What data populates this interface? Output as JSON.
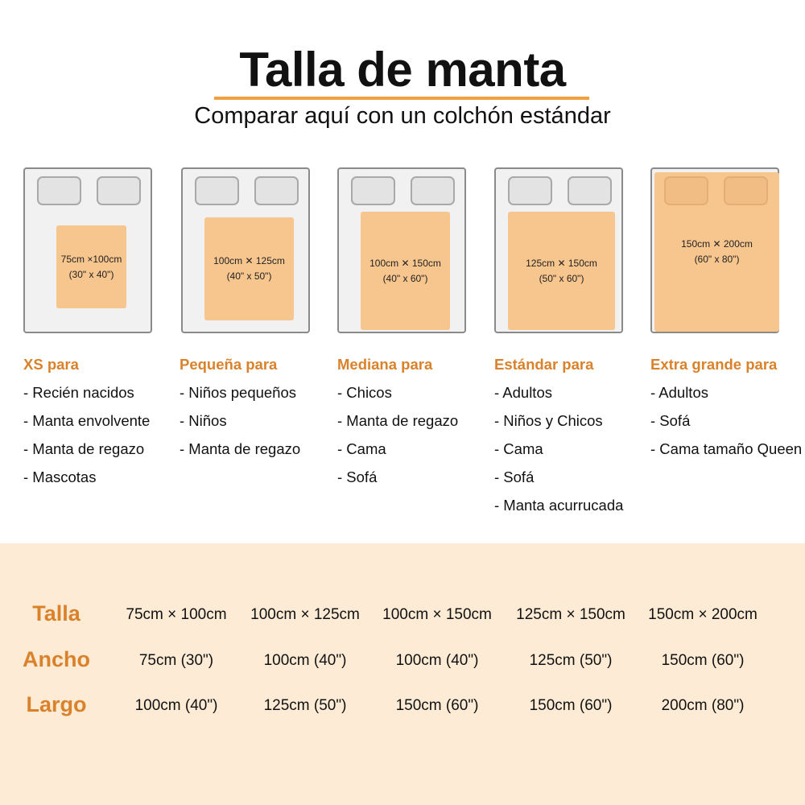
{
  "header": {
    "title": "Talla de manta",
    "subtitle": "Comparar aquí con un colchón estándar"
  },
  "colors": {
    "accent": "#d9822b",
    "blanket": "#f7c68e",
    "bottom_bg": "#fdebd5"
  },
  "sizes": [
    {
      "cm": "75cm ×100cm",
      "in": "(30\" x 40\")",
      "heading": "XS para",
      "uses": [
        "- Recién nacidos",
        "- Manta envolvente",
        "- Manta de regazo",
        "- Mascotas"
      ]
    },
    {
      "cm": "100cm ✕ 125cm",
      "in": "(40\" x 50\")",
      "heading": "Pequeña para",
      "uses": [
        "- Niños pequeños",
        "- Niños",
        "- Manta de regazo"
      ]
    },
    {
      "cm": "100cm ✕ 150cm",
      "in": "(40\" x 60\")",
      "heading": "Mediana para",
      "uses": [
        "- Chicos",
        "- Manta de regazo",
        "- Cama",
        "- Sofá"
      ]
    },
    {
      "cm": "125cm ✕ 150cm",
      "in": "(50\" x 60\")",
      "heading": "Estándar para",
      "uses": [
        "- Adultos",
        "- Niños y Chicos",
        "- Cama",
        "- Sofá",
        "- Manta acurrucada"
      ]
    },
    {
      "cm": "150cm ✕ 200cm",
      "in": "(60\" x 80\")",
      "heading": "Extra grande para",
      "uses": [
        "- Adultos",
        "- Sofá",
        "- Cama tamaño Queen"
      ]
    }
  ],
  "table": {
    "rows": [
      {
        "label": "Talla",
        "values": [
          "75cm × 100cm",
          "100cm × 125cm",
          "100cm × 150cm",
          "125cm × 150cm",
          "150cm × 200cm"
        ]
      },
      {
        "label": "Ancho",
        "values": [
          "75cm (30\")",
          "100cm (40\")",
          "100cm (40\")",
          "125cm (50\")",
          "150cm (60\")"
        ]
      },
      {
        "label": "Largo",
        "values": [
          "100cm (40\")",
          "125cm (50\")",
          "150cm (60\")",
          "150cm (60\")",
          "200cm (80\")"
        ]
      }
    ]
  }
}
